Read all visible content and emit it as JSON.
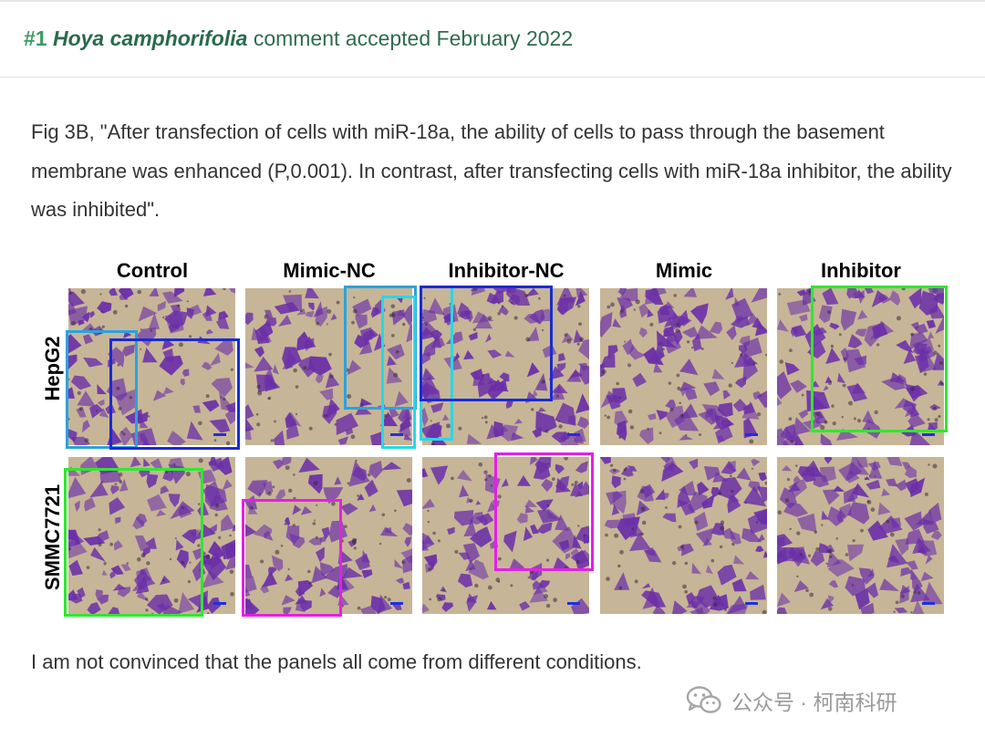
{
  "header": {
    "number": "#1",
    "species": "Hoya camphorifolia",
    "status": "comment accepted February 2022"
  },
  "intro": "Fig 3B, \"After transfection of cells with miR-18a, the ability of cells to pass through the basement membrane was enhanced (P,0.001). In contrast, after transfecting cells with miR-18a inhibitor, the ability was inhibited\".",
  "figure": {
    "columns": [
      "Control",
      "Mimic-NC",
      "Inhibitor-NC",
      "Mimic",
      "Inhibitor"
    ],
    "rows": [
      "HepG2",
      "SMMC7721"
    ],
    "box_colors": {
      "light_blue": "#2aa3dc",
      "dark_blue": "#1a2bd6",
      "cyan": "#27d7e8",
      "green": "#2ee82e",
      "magenta": "#e51fe5"
    },
    "stain_color": "#6b2fa8",
    "background_color": "#c7b597"
  },
  "closing": "I am not convinced that the panels all come from different conditions.",
  "watermark": {
    "icon": "wechat-icon",
    "text": "公众号 · 柯南科研"
  }
}
